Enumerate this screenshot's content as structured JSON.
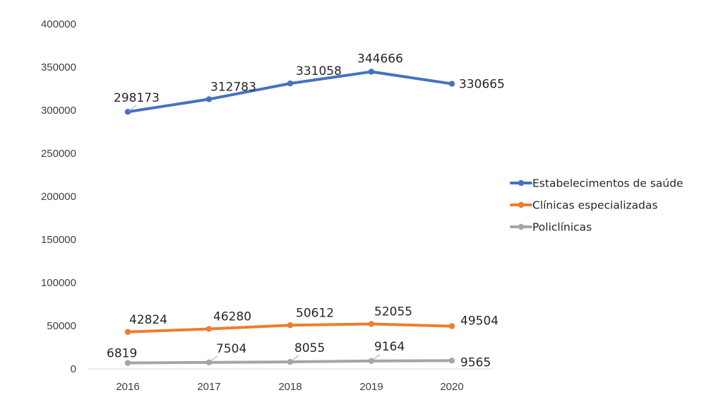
{
  "chart_data": {
    "type": "line",
    "title": "",
    "xlabel": "",
    "ylabel": "",
    "categories": [
      "2016",
      "2017",
      "2018",
      "2019",
      "2020"
    ],
    "ylim": [
      0,
      400000
    ],
    "y_ticks": [
      "0",
      "50000",
      "100000",
      "150000",
      "200000",
      "250000",
      "300000",
      "350000",
      "400000"
    ],
    "grid": false,
    "legend_position": "right",
    "series": [
      {
        "name": "Estabelecimentos de saúde",
        "color": "#4472C4",
        "values": [
          298173,
          312783,
          331058,
          344666,
          330665
        ],
        "labels": [
          "298173",
          "312783",
          "331058",
          "344666",
          "330665"
        ]
      },
      {
        "name": "Clínicas especializadas",
        "color": "#ED7D31",
        "values": [
          42824,
          46280,
          50612,
          52055,
          49504
        ],
        "labels": [
          "42824",
          "46280",
          "50612",
          "52055",
          "49504"
        ]
      },
      {
        "name": "Policlínicas",
        "color": "#A5A5A5",
        "values": [
          6819,
          7504,
          8055,
          9164,
          9565
        ],
        "labels": [
          "6819",
          "7504",
          "8055",
          "9164",
          "9565"
        ]
      }
    ]
  }
}
